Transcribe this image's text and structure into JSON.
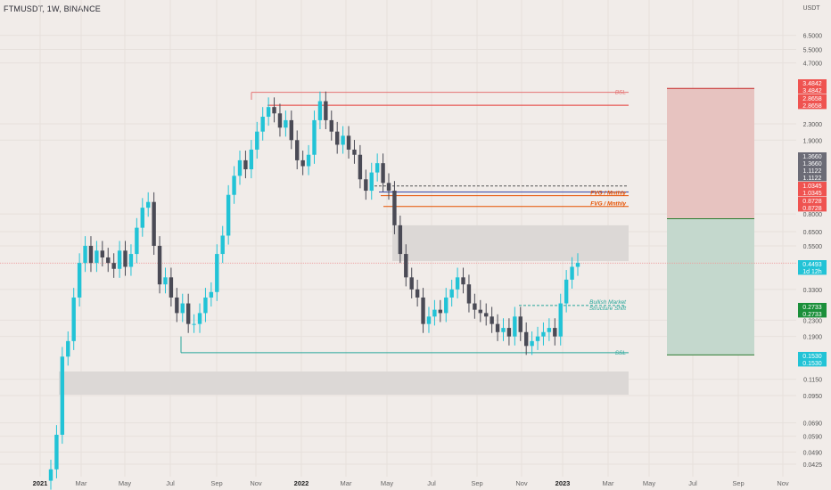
{
  "header": {
    "symbol_line": "FTMUSDT, 1W, BINANCE"
  },
  "chart_data": {
    "type": "candlestick",
    "title": "FTMUSDT, 1W, BINANCE",
    "y_scale": "log",
    "ylim": [
      0.039,
      7.6
    ],
    "y_unit": "USDT",
    "y_ticks": [
      "6.5000",
      "5.5000",
      "4.7000",
      "2.3000",
      "1.9000",
      "0.8000",
      "0.6500",
      "0.5500",
      "0.3300",
      "0.2300",
      "0.1900",
      "0.1150",
      "0.0950",
      "0.0690",
      "0.0590",
      "0.0490",
      "0.0425"
    ],
    "x_ticks": [
      "2021",
      "Mar",
      "May",
      "Jul",
      "Sep",
      "Nov",
      "2022",
      "Mar",
      "May",
      "Jul",
      "Sep",
      "Nov",
      "2023",
      "Mar",
      "May",
      "Jul",
      "Sep",
      "Nov"
    ],
    "x_tick_bold": [
      "2021",
      "2022",
      "2023"
    ],
    "colors": {
      "up": "#26a69a",
      "down": "#4a4a55",
      "up_body": "#22c3d6",
      "grid": "#e6e0dc",
      "bg": "#f1ece9"
    },
    "candles_close_sequence_note": "weekly candles approximated",
    "last_price": {
      "value": "0.4493",
      "countdown": "1d 12h"
    },
    "levels": [
      {
        "label": "BSL",
        "price": 3.33,
        "color": "#e57373"
      },
      {
        "label": "",
        "price": 2.86,
        "color": "#e53935"
      },
      {
        "label": "",
        "price": 1.11,
        "color": "#555555",
        "dashed": true
      },
      {
        "label": "",
        "price": 1.0345,
        "color": "#3949ab"
      },
      {
        "label": "FVG / Mnthly",
        "price": 0.99,
        "color": "#e65100"
      },
      {
        "label": "FVG / Mnthly",
        "price": 0.8728,
        "color": "#e65100"
      },
      {
        "label": "SSL",
        "price": 0.157,
        "color": "#26a69a"
      },
      {
        "label": "Bullish Market Structure Shift",
        "price": 0.2733,
        "color": "#26a69a",
        "dashed": true
      }
    ],
    "zones": [
      {
        "name": "gray-zone-upper",
        "from": 0.46,
        "to": 0.7
      },
      {
        "name": "gray-zone-lower",
        "from": 0.096,
        "to": 0.126
      }
    ],
    "position": {
      "entry": 0.7563,
      "stop": 0.153,
      "target": 3.4842
    },
    "price_labels": [
      {
        "text": "3.4842",
        "color": "#ef5350"
      },
      {
        "text": "3.4842",
        "color": "#ef5350"
      },
      {
        "text": "2.8658",
        "color": "#ef5350"
      },
      {
        "text": "2.8658",
        "color": "#ef5350"
      },
      {
        "text": "1.3660",
        "color": "#6b6b76"
      },
      {
        "text": "1.3660",
        "color": "#6b6b76"
      },
      {
        "text": "1.1122",
        "color": "#6b6b76"
      },
      {
        "text": "1.1122",
        "color": "#6b6b76"
      },
      {
        "text": "1.0345",
        "color": "#ef5350"
      },
      {
        "text": "1.0345",
        "color": "#ef5350"
      },
      {
        "text": "0.8728",
        "color": "#ef5350"
      },
      {
        "text": "0.8728",
        "color": "#ef5350"
      },
      {
        "text": "0.4493",
        "color": "#22c3d6"
      },
      {
        "text": "1d 12h",
        "color": "#22c3d6"
      },
      {
        "text": "0.2733",
        "color": "#1b8f3a"
      },
      {
        "text": "0.2733",
        "color": "#1b8f3a"
      },
      {
        "text": "0.1530",
        "color": "#22c3d6"
      },
      {
        "text": "0.1530",
        "color": "#22c3d6"
      }
    ]
  }
}
